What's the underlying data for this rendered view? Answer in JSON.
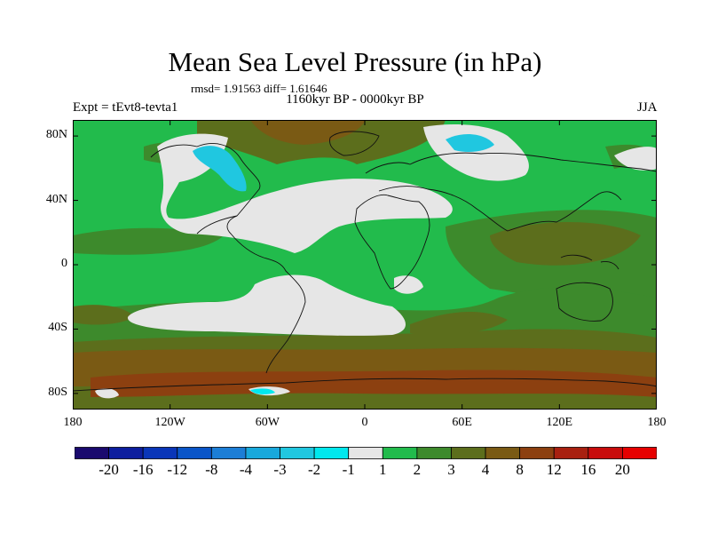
{
  "header": {
    "title": "Mean Sea Level Pressure (in hPa)",
    "stats": "rmsd= 1.91563 diff= 1.61646",
    "subtitle": "1160kyr BP - 0000kyr BP",
    "experiment": "Expt = tEvt8-tevta1",
    "season": "JJA"
  },
  "axes": {
    "lat_labels": [
      "80N",
      "40N",
      "0",
      "40S",
      "80S"
    ],
    "lat_values": [
      80,
      40,
      0,
      -40,
      -80
    ],
    "lon_labels": [
      "180",
      "120W",
      "60W",
      "0",
      "60E",
      "120E",
      "180"
    ],
    "lon_values": [
      -180,
      -120,
      -60,
      0,
      60,
      120,
      180
    ]
  },
  "colorbar": {
    "labels": [
      "-20",
      "-16",
      "-12",
      "-8",
      "-4",
      "-3",
      "-2",
      "-1",
      "1",
      "2",
      "3",
      "4",
      "8",
      "12",
      "16",
      "20"
    ],
    "colors": [
      "#1a0a6e",
      "#0d1e9e",
      "#0a36b8",
      "#0a55c8",
      "#1c7ed6",
      "#18a8dc",
      "#20c7e0",
      "#00e8ee",
      "#e6e6e6",
      "#22bb4c",
      "#3d8a2c",
      "#5c6e1c",
      "#7a5a14",
      "#8c4010",
      "#a82010",
      "#c80c0c",
      "#e60000"
    ]
  },
  "colors": {
    "land_outline": "#111111",
    "default_fill": "#22bb4c"
  }
}
